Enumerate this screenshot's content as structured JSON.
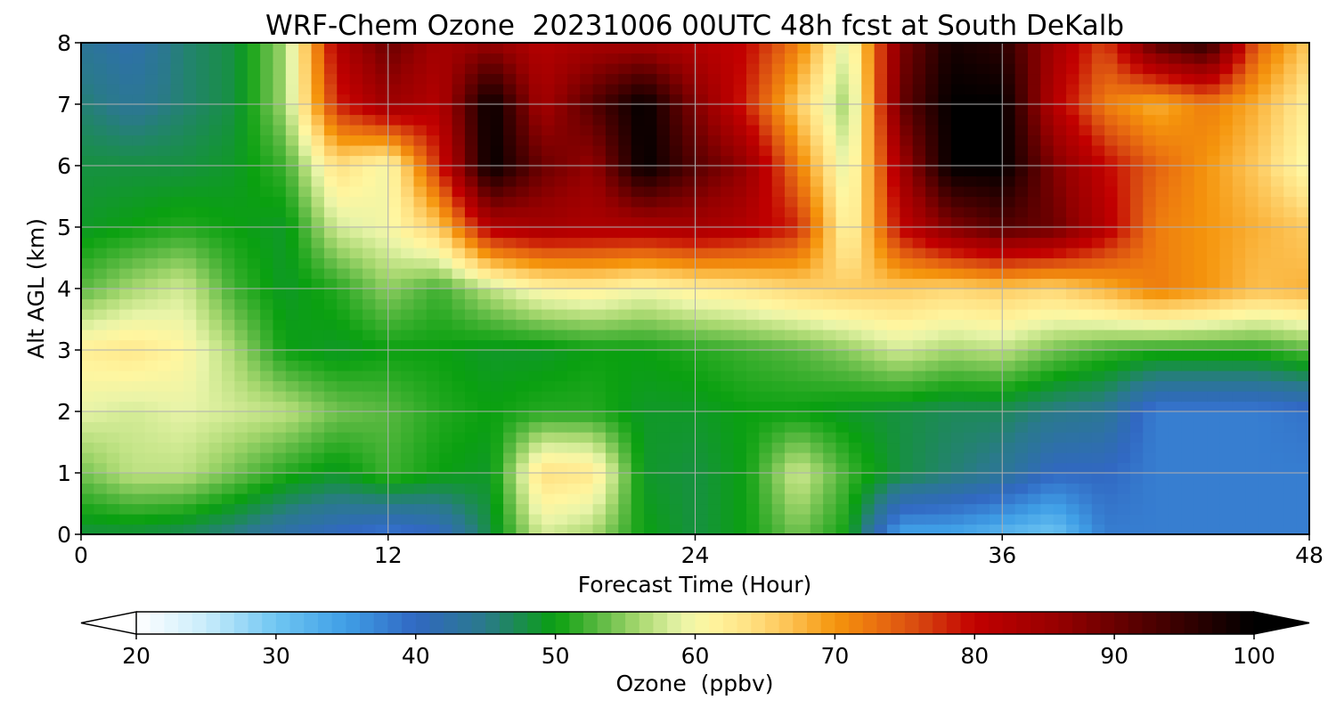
{
  "chart_data": {
    "type": "heatmap",
    "title": "WRF-Chem Ozone  20231006 00UTC 48h fcst at South DeKalb",
    "xlabel": "Forecast Time (Hour)",
    "ylabel": "Alt AGL (km)",
    "xlim": [
      0,
      48
    ],
    "ylim": [
      0,
      8
    ],
    "xticks": [
      0,
      12,
      24,
      36,
      48
    ],
    "yticks": [
      0,
      1,
      2,
      3,
      4,
      5,
      6,
      7,
      8
    ],
    "grid": true,
    "x": [
      0,
      2,
      4,
      6,
      8,
      10,
      12,
      14,
      16,
      18,
      20,
      22,
      24,
      26,
      28,
      30,
      32,
      34,
      36,
      38,
      40,
      42,
      44,
      46,
      48
    ],
    "y": [
      0,
      1,
      2,
      3,
      4,
      5,
      6,
      7,
      8
    ],
    "z": [
      [
        48,
        48,
        47,
        45,
        42,
        40,
        38,
        40,
        48,
        58,
        56,
        50,
        48,
        50,
        54,
        50,
        34,
        34,
        32,
        30,
        38,
        38,
        38,
        38,
        38
      ],
      [
        54,
        57,
        57,
        54,
        51,
        49,
        52,
        50,
        49,
        64,
        63,
        49,
        48,
        50,
        58,
        52,
        48,
        46,
        44,
        40,
        40,
        38,
        38,
        38,
        38
      ],
      [
        59,
        58,
        59,
        58,
        57,
        54,
        53,
        51,
        50,
        51,
        51,
        49,
        49,
        50,
        50,
        49,
        48,
        47,
        47,
        45,
        44,
        38,
        38,
        38,
        39
      ],
      [
        62,
        63,
        61,
        56,
        50,
        49,
        50,
        50,
        49,
        49,
        50,
        50,
        51,
        52,
        53,
        55,
        58,
        56,
        57,
        54,
        52,
        51,
        51,
        51,
        53
      ],
      [
        53,
        56,
        58,
        52,
        49,
        51,
        55,
        52,
        57,
        61,
        62,
        60,
        62,
        63,
        65,
        66,
        66,
        65,
        66,
        65,
        68,
        72,
        70,
        67,
        68
      ],
      [
        49,
        50,
        51,
        50,
        49,
        58,
        60,
        66,
        82,
        84,
        83,
        83,
        84,
        82,
        78,
        60,
        80,
        88,
        92,
        90,
        82,
        72,
        70,
        68,
        66
      ],
      [
        48,
        48,
        48,
        49,
        52,
        64,
        60,
        78,
        100,
        90,
        86,
        100,
        92,
        86,
        72,
        58,
        84,
        100,
        100,
        88,
        80,
        74,
        70,
        66,
        60
      ],
      [
        46,
        44,
        46,
        48,
        56,
        78,
        85,
        82,
        100,
        84,
        92,
        100,
        88,
        78,
        66,
        55,
        90,
        100,
        100,
        82,
        72,
        68,
        72,
        68,
        62
      ],
      [
        44,
        42,
        46,
        48,
        56,
        82,
        90,
        84,
        86,
        82,
        84,
        84,
        82,
        80,
        72,
        58,
        88,
        98,
        96,
        84,
        76,
        92,
        96,
        74,
        66
      ]
    ],
    "colorbar": {
      "label": "Ozone  (ppbv)",
      "min": 20,
      "max": 100,
      "ticks": [
        20,
        30,
        40,
        50,
        60,
        70,
        80,
        90,
        100
      ],
      "extend": "both"
    },
    "colormap": [
      [
        20,
        "#ffffff"
      ],
      [
        25,
        "#c8ecfb"
      ],
      [
        30,
        "#6fc6f2"
      ],
      [
        35,
        "#3f9ee6"
      ],
      [
        40,
        "#3168c2"
      ],
      [
        45,
        "#2a7a8a"
      ],
      [
        50,
        "#0aa010"
      ],
      [
        53,
        "#58b840"
      ],
      [
        56,
        "#a8d870"
      ],
      [
        59,
        "#e8f4a8"
      ],
      [
        61,
        "#fff6a0"
      ],
      [
        64,
        "#ffe082"
      ],
      [
        67,
        "#fcbf4e"
      ],
      [
        70,
        "#f5950c"
      ],
      [
        73,
        "#ea7010"
      ],
      [
        76,
        "#d84810"
      ],
      [
        80,
        "#c20000"
      ],
      [
        86,
        "#960000"
      ],
      [
        93,
        "#4a0000"
      ],
      [
        100,
        "#000000"
      ]
    ]
  }
}
